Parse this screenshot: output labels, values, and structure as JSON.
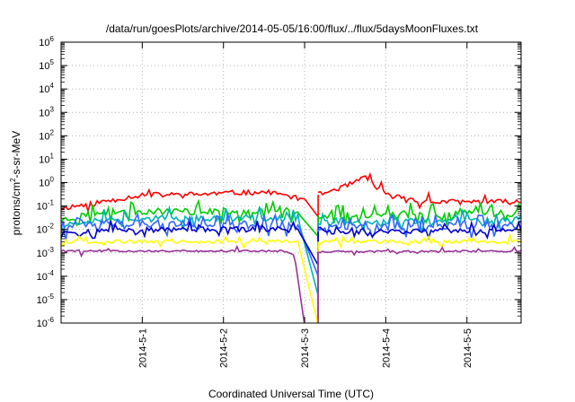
{
  "chart_data": {
    "type": "line",
    "title": "/data/run/goesPlots/archive/2014-05-05/16:00/flux/../flux/5daysMoonFluxes.txt",
    "xlabel": "Coordinated Universal Time (UTC)",
    "ylabel": {
      "base": "protons/cm",
      "sup": "2",
      "rest": "-s-sr-MeV"
    },
    "yscale": "log",
    "ylim": [
      1e-06,
      1000000.0
    ],
    "ytick_labels": [
      {
        "exp": "-6",
        "value": 1e-06
      },
      {
        "exp": "-5",
        "value": 1e-05
      },
      {
        "exp": "-4",
        "value": 0.0001
      },
      {
        "exp": "-3",
        "value": 0.001
      },
      {
        "exp": "-2",
        "value": 0.01
      },
      {
        "exp": "-1",
        "value": 0.1
      },
      {
        "exp": "0",
        "value": 1
      },
      {
        "exp": "1",
        "value": 10
      },
      {
        "exp": "2",
        "value": 100
      },
      {
        "exp": "3",
        "value": 1000
      },
      {
        "exp": "4",
        "value": 10000
      },
      {
        "exp": "5",
        "value": 100000
      },
      {
        "exp": "6",
        "value": 1000000
      }
    ],
    "ytick_base": "10",
    "xlim": [
      "2014-04-30 00:00",
      "2014-05-05 16:00"
    ],
    "xticks": [
      "2014-5-1",
      "2014-5-2",
      "2014-5-3",
      "2014-5-4",
      "2014-5-5"
    ],
    "grid": "dotted",
    "series": [
      {
        "color": "#ff0000",
        "seed": 11,
        "noise": 0.22,
        "spike_prob": 0.06,
        "spike_amp": 0.35,
        "baseline": [
          [
            "2014-04-30 00:00",
            0.08
          ],
          [
            "2014-04-30 12:00",
            0.15
          ],
          [
            "2014-05-01 00:00",
            0.3
          ],
          [
            "2014-05-01 12:00",
            0.3
          ],
          [
            "2014-05-02 00:00",
            0.35
          ],
          [
            "2014-05-02 12:00",
            0.4
          ],
          [
            "2014-05-03 00:00",
            0.2
          ],
          [
            "2014-05-03 04:00",
            0.035
          ]
        ],
        "after": [
          [
            "2014-05-03 04:00",
            0.3
          ],
          [
            "2014-05-03 12:00",
            0.7
          ],
          [
            "2014-05-03 18:00",
            1.6
          ],
          [
            "2014-05-04 00:00",
            0.3
          ],
          [
            "2014-05-04 12:00",
            0.15
          ],
          [
            "2014-05-05 16:00",
            0.15
          ]
        ]
      },
      {
        "color": "#00cc00",
        "seed": 23,
        "noise": 0.28,
        "spike_prob": 0.35,
        "spike_amp": 0.45,
        "baseline": [
          [
            "2014-04-30 00:00",
            0.025
          ],
          [
            "2014-04-30 12:00",
            0.06
          ],
          [
            "2014-05-02 12:00",
            0.06
          ],
          [
            "2014-05-02 22:00",
            0.05
          ],
          [
            "2014-05-03 04:00",
            0.005
          ]
        ],
        "after": [
          [
            "2014-05-03 04:00",
            0.04
          ],
          [
            "2014-05-05 16:00",
            0.05
          ]
        ]
      },
      {
        "color": "#00b3b3",
        "seed": 37,
        "noise": 0.25,
        "spike_prob": 0.35,
        "spike_amp": 0.45,
        "baseline": [
          [
            "2014-04-30 00:00",
            0.015
          ],
          [
            "2014-04-30 12:00",
            0.03
          ],
          [
            "2014-05-02 22:00",
            0.03
          ],
          [
            "2014-05-03 04:00",
            1.5e-05
          ]
        ],
        "after": [
          [
            "2014-05-03 04:00",
            0.02
          ],
          [
            "2014-05-05 16:00",
            0.025
          ]
        ]
      },
      {
        "color": "#3366ff",
        "seed": 41,
        "noise": 0.3,
        "spike_prob": 0.4,
        "spike_amp": 0.5,
        "baseline": [
          [
            "2014-04-30 00:00",
            0.012
          ],
          [
            "2014-04-30 12:00",
            0.018
          ],
          [
            "2014-05-02 22:00",
            0.018
          ],
          [
            "2014-05-03 04:00",
            0.0001
          ]
        ],
        "after": [
          [
            "2014-05-03 04:00",
            0.012
          ],
          [
            "2014-05-05 16:00",
            0.015
          ]
        ]
      },
      {
        "color": "#0000cc",
        "seed": 53,
        "noise": 0.22,
        "spike_prob": 0.3,
        "spike_amp": 0.35,
        "baseline": [
          [
            "2014-04-30 00:00",
            0.008
          ],
          [
            "2014-04-30 12:00",
            0.01
          ],
          [
            "2014-05-02 22:00",
            0.01
          ],
          [
            "2014-05-03 04:00",
            0.0003
          ]
        ],
        "after": [
          [
            "2014-05-03 04:00",
            0.008
          ],
          [
            "2014-05-05 16:00",
            0.009
          ]
        ]
      },
      {
        "color": "#ffff00",
        "seed": 67,
        "noise": 0.15,
        "spike_prob": 0.2,
        "spike_amp": 0.3,
        "baseline": [
          [
            "2014-04-30 00:00",
            0.003
          ],
          [
            "2014-05-02 22:00",
            0.003
          ],
          [
            "2014-05-03 04:00",
            8e-07
          ]
        ],
        "after": [
          [
            "2014-05-03 04:00",
            0.003
          ],
          [
            "2014-05-05 16:00",
            0.003
          ]
        ]
      },
      {
        "color": "#993399",
        "seed": 79,
        "noise": 0.08,
        "spike_prob": 0.05,
        "spike_amp": 0.2,
        "baseline": [
          [
            "2014-04-30 00:00",
            0.0012
          ],
          [
            "2014-05-02 18:00",
            0.0012
          ],
          [
            "2014-05-02 21:00",
            0.0008
          ],
          [
            "2014-05-03 00:00",
            8e-07
          ]
        ],
        "after": [
          [
            "2014-05-03 04:00",
            0.0011
          ],
          [
            "2014-05-05 16:00",
            0.0012
          ]
        ]
      }
    ]
  }
}
